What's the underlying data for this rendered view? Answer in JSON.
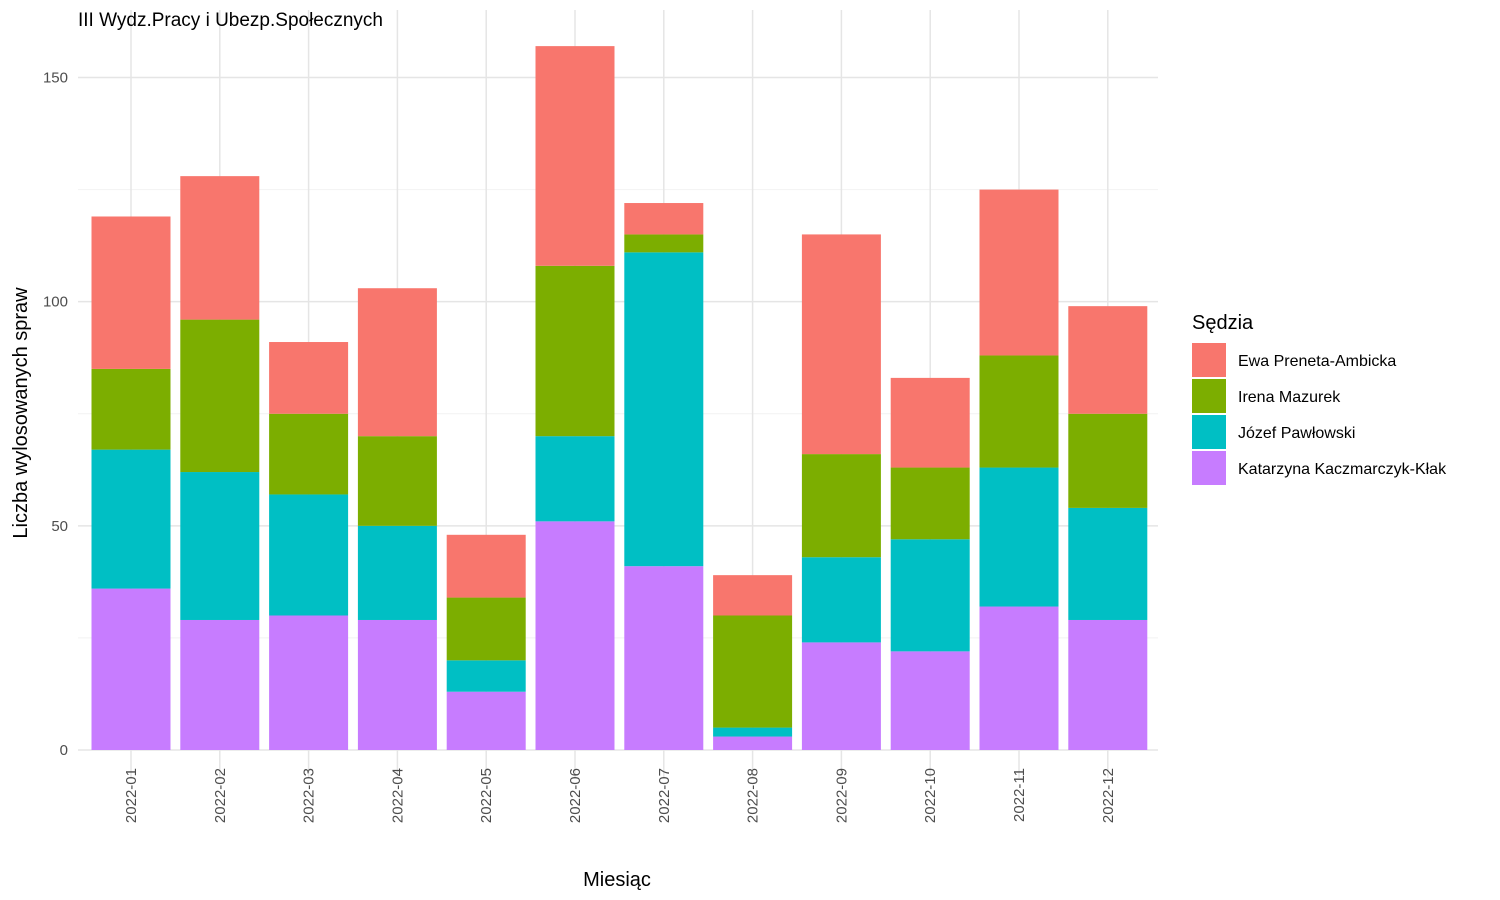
{
  "chart_data": {
    "type": "bar",
    "stacked": true,
    "title": "III Wydz.Pracy i Ubezp.Społecznych",
    "xlabel": "Miesiąc",
    "ylabel": "Liczba wylosowanych spraw",
    "ylim": [
      0,
      160
    ],
    "yticks": [
      0,
      50,
      100,
      150
    ],
    "grid": true,
    "legend": {
      "title": "Sędzia",
      "position": "right"
    },
    "categories": [
      "2022-01",
      "2022-02",
      "2022-03",
      "2022-04",
      "2022-05",
      "2022-06",
      "2022-07",
      "2022-08",
      "2022-09",
      "2022-10",
      "2022-11",
      "2022-12"
    ],
    "series": [
      {
        "name": "Katarzyna Kaczmarczyk-Kłak",
        "color": "#C77CFF",
        "values": [
          36,
          29,
          30,
          29,
          13,
          51,
          41,
          3,
          24,
          22,
          32,
          29
        ]
      },
      {
        "name": "Józef Pawłowski",
        "color": "#00BFC4",
        "values": [
          31,
          33,
          27,
          21,
          7,
          19,
          70,
          2,
          19,
          25,
          31,
          25
        ]
      },
      {
        "name": "Irena Mazurek",
        "color": "#7CAE00",
        "values": [
          18,
          34,
          18,
          20,
          14,
          38,
          4,
          25,
          23,
          16,
          25,
          21
        ]
      },
      {
        "name": "Ewa Preneta-Ambicka",
        "color": "#F8766D",
        "values": [
          34,
          32,
          16,
          33,
          14,
          49,
          7,
          9,
          49,
          20,
          37,
          24
        ]
      }
    ],
    "legend_order": [
      "Ewa Preneta-Ambicka",
      "Irena Mazurek",
      "Józef Pawłowski",
      "Katarzyna Kaczmarczyk-Kłak"
    ]
  }
}
